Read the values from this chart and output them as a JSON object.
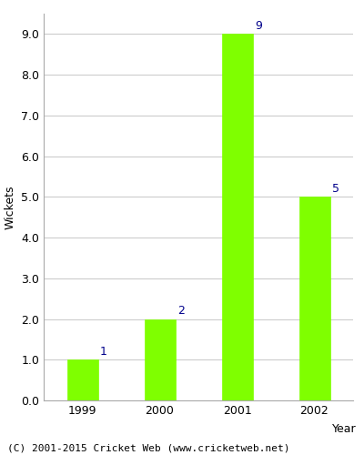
{
  "years": [
    "1999",
    "2000",
    "2001",
    "2002"
  ],
  "values": [
    1,
    2,
    9,
    5
  ],
  "bar_color": "#7FFF00",
  "bar_edgecolor": "#7FFF00",
  "xlabel": "Year",
  "ylabel": "Wickets",
  "ylim": [
    0,
    9.5
  ],
  "yticks": [
    0.0,
    1.0,
    2.0,
    3.0,
    4.0,
    5.0,
    6.0,
    7.0,
    8.0,
    9.0
  ],
  "annotation_color": "#00008B",
  "annotation_fontsize": 9,
  "axis_label_fontsize": 9,
  "tick_fontsize": 9,
  "footer_text": "(C) 2001-2015 Cricket Web (www.cricketweb.net)",
  "footer_fontsize": 8,
  "background_color": "#ffffff",
  "grid_color": "#cccccc",
  "bar_width": 0.4
}
